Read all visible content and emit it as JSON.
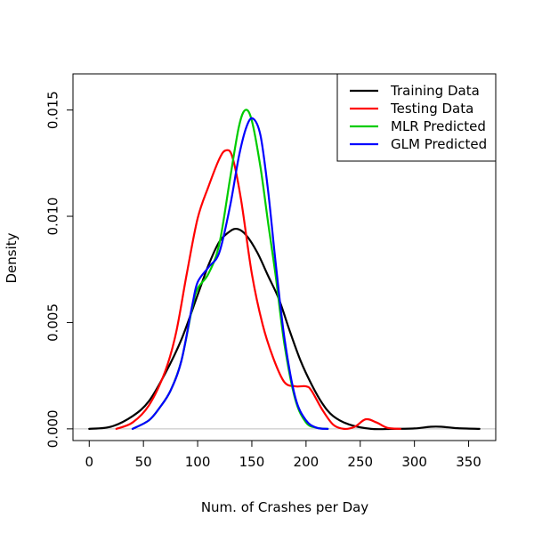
{
  "chart_data": {
    "type": "line",
    "xlabel": "Num. of Crashes per Day",
    "ylabel": "Density",
    "xlim": [
      -15,
      375
    ],
    "ylim": [
      -0.00055,
      0.0167
    ],
    "x_ticks": [
      0,
      50,
      100,
      150,
      200,
      250,
      300,
      350
    ],
    "y_ticks": [
      0.0,
      0.005,
      0.01,
      0.015
    ],
    "x_tick_labels": [
      "0",
      "50",
      "100",
      "150",
      "200",
      "250",
      "300",
      "350"
    ],
    "y_tick_labels": [
      "0.000",
      "0.005",
      "0.010",
      "0.015"
    ],
    "grid": false,
    "zero_reference_line": true,
    "legend_position": "top-right",
    "series": [
      {
        "name": "Training Data",
        "color": "#000000",
        "x": [
          0,
          20,
          40,
          55,
          70,
          85,
          100,
          110,
          120,
          130,
          137,
          145,
          155,
          165,
          175,
          185,
          195,
          205,
          215,
          225,
          240,
          260,
          280,
          300,
          315,
          325,
          340,
          360
        ],
        "y": [
          0.0,
          0.0001,
          0.0006,
          0.0013,
          0.0026,
          0.0042,
          0.0063,
          0.0077,
          0.0088,
          0.0093,
          0.0094,
          0.0091,
          0.0083,
          0.0072,
          0.0061,
          0.0046,
          0.0032,
          0.0021,
          0.0012,
          0.0006,
          0.0002,
          0.0,
          0.0,
          2e-05,
          0.0001,
          0.0001,
          3e-05,
          0.0
        ]
      },
      {
        "name": "Testing Data",
        "color": "#ff0000",
        "x": [
          25,
          40,
          55,
          70,
          80,
          90,
          100,
          110,
          120,
          126,
          132,
          140,
          150,
          160,
          170,
          180,
          190,
          200,
          205,
          215,
          225,
          235,
          245,
          255,
          265,
          275,
          287
        ],
        "y": [
          0.0,
          0.0003,
          0.0011,
          0.0027,
          0.0045,
          0.0073,
          0.0099,
          0.0114,
          0.0127,
          0.0131,
          0.0128,
          0.0108,
          0.0073,
          0.0049,
          0.0033,
          0.0022,
          0.002,
          0.002,
          0.0018,
          0.0009,
          0.0002,
          0.0,
          0.0001,
          0.00045,
          0.0003,
          5e-05,
          0.0
        ]
      },
      {
        "name": "MLR Predicted",
        "color": "#00cc00",
        "x": [
          40,
          55,
          65,
          75,
          85,
          95,
          100,
          110,
          120,
          130,
          138,
          144,
          150,
          158,
          165,
          172,
          180,
          190,
          200,
          210,
          220
        ],
        "y": [
          0.0,
          0.0004,
          0.001,
          0.0018,
          0.0032,
          0.0057,
          0.0066,
          0.0073,
          0.0087,
          0.0118,
          0.0142,
          0.015,
          0.0145,
          0.0123,
          0.0097,
          0.0072,
          0.004,
          0.0014,
          0.0003,
          5e-05,
          0.0
        ]
      },
      {
        "name": "GLM Predicted",
        "color": "#0000ff",
        "x": [
          40,
          55,
          65,
          75,
          85,
          95,
          100,
          110,
          120,
          130,
          138,
          145,
          151,
          158,
          165,
          172,
          180,
          190,
          200,
          210,
          220
        ],
        "y": [
          0.0,
          0.0004,
          0.001,
          0.0018,
          0.0032,
          0.0058,
          0.0069,
          0.0076,
          0.0083,
          0.0105,
          0.0128,
          0.0142,
          0.0146,
          0.0138,
          0.0112,
          0.0078,
          0.0043,
          0.0015,
          0.0004,
          5e-05,
          0.0
        ]
      }
    ]
  }
}
